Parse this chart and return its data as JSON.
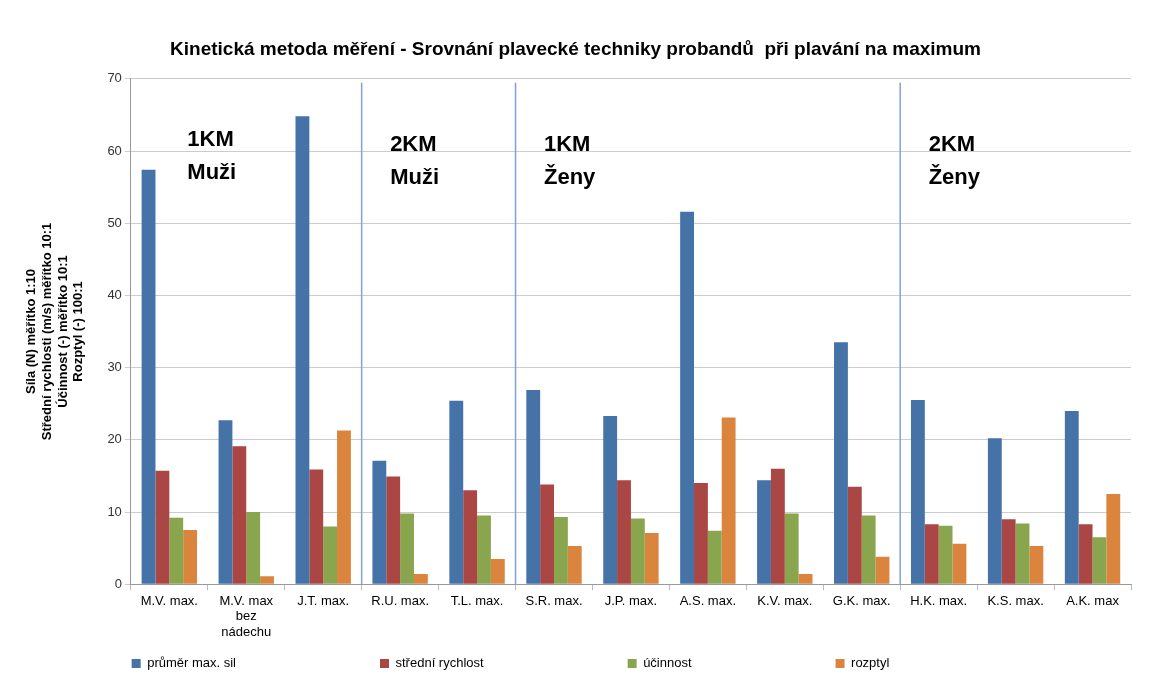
{
  "chart_data": {
    "type": "bar",
    "title": "Kinetická metoda měření - Srovnání plavecké techniky probandů  při plavání na maximum",
    "ylabel": "Síla (N) měřítko 1:10\nStřední rychlosti (m/s) měřítko 10:1\nÚčinnost (-) měřítko 10:1\nRozptyl (-) 100:1",
    "categories": [
      "M.V. max.",
      "M.V. max bez nádechu",
      "J.T. max.",
      "R.U. max.",
      "T.L. max.",
      "S.R. max.",
      "J.P. max.",
      "A.S. max.",
      "K.V. max.",
      "G.K. max.",
      "H.K. max.",
      "K.S. max.",
      "A.K. max"
    ],
    "series": [
      {
        "name": "průměr max. sil",
        "color": "#4572a7",
        "values": [
          57.4,
          22.7,
          64.8,
          17.1,
          25.4,
          26.9,
          23.3,
          51.6,
          14.4,
          33.5,
          25.5,
          20.2,
          24.0
        ]
      },
      {
        "name": "střední rychlost",
        "color": "#aa4643",
        "values": [
          15.7,
          19.1,
          15.9,
          14.9,
          13.0,
          13.8,
          14.4,
          14.0,
          16.0,
          13.5,
          8.3,
          9.0,
          8.3
        ]
      },
      {
        "name": "účinnost",
        "color": "#89a54e",
        "values": [
          9.2,
          10.0,
          8.0,
          9.8,
          9.5,
          9.3,
          9.1,
          7.4,
          9.8,
          9.5,
          8.1,
          8.4,
          6.5
        ]
      },
      {
        "name": "rozptyl",
        "color": "#db843d",
        "values": [
          7.5,
          1.1,
          21.3,
          1.4,
          3.5,
          5.3,
          7.1,
          23.1,
          1.4,
          3.8,
          5.6,
          5.3,
          12.5
        ]
      }
    ],
    "ylim": [
      0,
      70
    ],
    "yticks": [
      0,
      10,
      20,
      30,
      40,
      50,
      60,
      70
    ],
    "grid": "y",
    "legend": "bottom",
    "annotations": [
      "1KM\nMuži",
      "2KM\nMuži",
      "1KM\nŽeny",
      "2KM\nŽeny"
    ]
  }
}
